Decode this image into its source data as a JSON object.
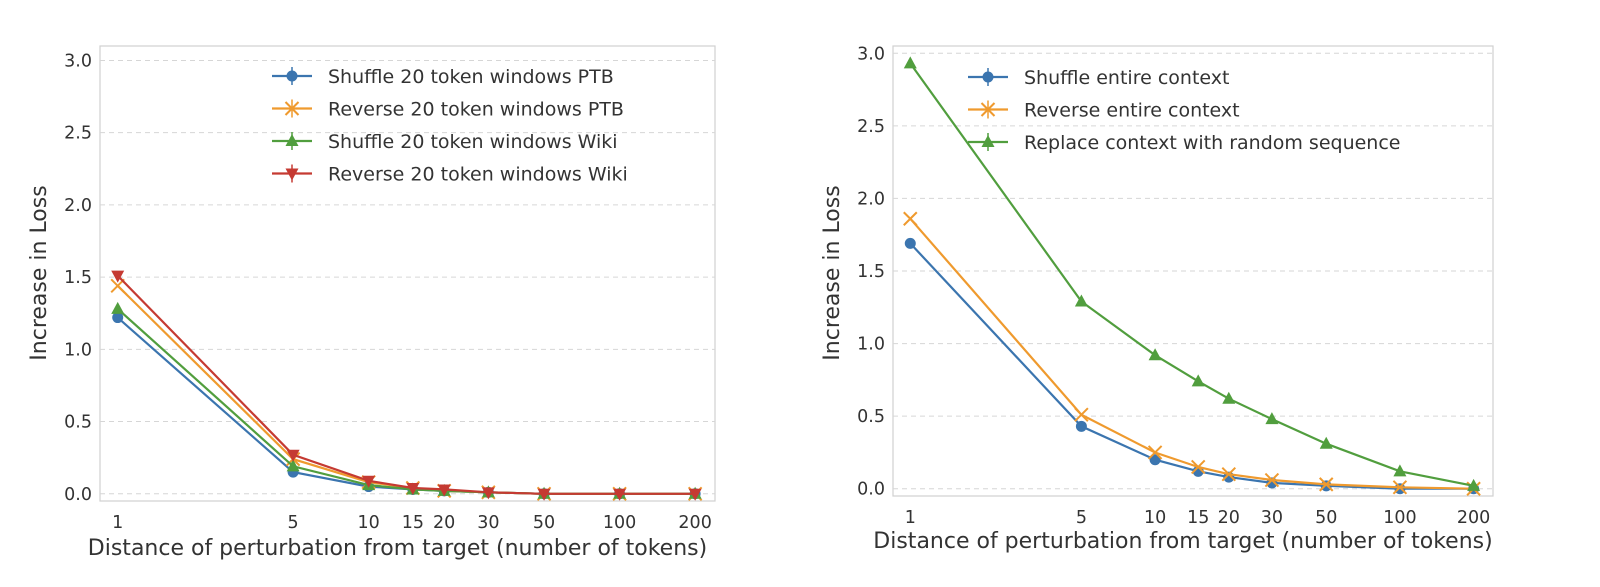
{
  "chart_data": [
    {
      "type": "line",
      "xscale": "log",
      "xlabel": "Distance of perturbation from target (number of tokens)",
      "ylabel": "Increase in Loss",
      "ylim": [
        -0.05,
        3.1
      ],
      "xlim": [
        0.85,
        240
      ],
      "xticks": [
        1,
        5,
        10,
        15,
        20,
        30,
        50,
        100,
        200
      ],
      "xtick_labels": [
        "1",
        "5",
        "10",
        "15",
        "20",
        "30",
        "50",
        "100",
        "200"
      ],
      "yticks": [
        0.0,
        0.5,
        1.0,
        1.5,
        2.0,
        2.5,
        3.0
      ],
      "ytick_labels": [
        "0.0",
        "0.5",
        "1.0",
        "1.5",
        "2.0",
        "2.5",
        "3.0"
      ],
      "grid": true,
      "legend_position": "top-right",
      "x": [
        1,
        5,
        10,
        15,
        20,
        30,
        50,
        100,
        200
      ],
      "series": [
        {
          "name": "Shuffle 20 token windows PTB",
          "color": "#3b75af",
          "marker": "circle",
          "values": [
            1.22,
            0.15,
            0.05,
            0.03,
            0.02,
            0.01,
            0.0,
            0.0,
            0.0
          ]
        },
        {
          "name": "Reverse 20 token windows PTB",
          "color": "#ef9a2e",
          "marker": "x",
          "values": [
            1.44,
            0.24,
            0.08,
            0.04,
            0.02,
            0.01,
            0.0,
            0.0,
            0.0
          ]
        },
        {
          "name": "Shuffle 20 token windows Wiki",
          "color": "#519e3e",
          "marker": "triangle-up",
          "values": [
            1.28,
            0.19,
            0.06,
            0.03,
            0.02,
            0.01,
            0.0,
            0.0,
            0.0
          ]
        },
        {
          "name": "Reverse 20 token windows Wiki",
          "color": "#c53a32",
          "marker": "triangle-down",
          "values": [
            1.51,
            0.27,
            0.09,
            0.04,
            0.03,
            0.01,
            0.0,
            0.0,
            0.0
          ]
        }
      ]
    },
    {
      "type": "line",
      "xscale": "log",
      "xlabel": "Distance of perturbation from target (number of tokens)",
      "ylabel": "Increase in Loss",
      "ylim": [
        -0.05,
        3.05
      ],
      "xlim": [
        0.85,
        240
      ],
      "xticks": [
        1,
        5,
        10,
        15,
        20,
        30,
        50,
        100,
        200
      ],
      "xtick_labels": [
        "1",
        "5",
        "10",
        "15",
        "20",
        "30",
        "50",
        "100",
        "200"
      ],
      "yticks": [
        0.0,
        0.5,
        1.0,
        1.5,
        2.0,
        2.5,
        3.0
      ],
      "ytick_labels": [
        "0.0",
        "0.5",
        "1.0",
        "1.5",
        "2.0",
        "2.5",
        "3.0"
      ],
      "grid": true,
      "legend_position": "top-right",
      "x": [
        1,
        5,
        10,
        15,
        20,
        30,
        50,
        100,
        200
      ],
      "series": [
        {
          "name": "Shuffle entire context",
          "color": "#3b75af",
          "marker": "circle",
          "values": [
            1.69,
            0.43,
            0.2,
            0.12,
            0.08,
            0.04,
            0.02,
            0.0,
            0.0
          ]
        },
        {
          "name": "Reverse entire context",
          "color": "#ef9a2e",
          "marker": "x",
          "values": [
            1.86,
            0.51,
            0.25,
            0.15,
            0.1,
            0.06,
            0.03,
            0.01,
            0.0
          ]
        },
        {
          "name": "Replace context with random sequence",
          "color": "#519e3e",
          "marker": "triangle-up",
          "values": [
            2.93,
            1.29,
            0.92,
            0.74,
            0.62,
            0.48,
            0.31,
            0.12,
            0.02
          ]
        }
      ]
    }
  ]
}
